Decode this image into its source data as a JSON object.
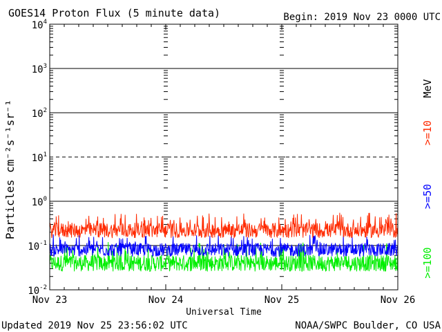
{
  "header": {
    "title": "GOES14 Proton Flux (5 minute data)",
    "begin": "Begin: 2019 Nov 23 0000 UTC"
  },
  "footer": {
    "updated": "Updated 2019 Nov 25 23:56:02 UTC",
    "credit": "NOAA/SWPC Boulder, CO USA"
  },
  "chart_data": {
    "type": "line",
    "title": "GOES14 Proton Flux (5 minute data)",
    "xlabel": "Universal Time",
    "ylabel": "Particles cm⁻²s⁻¹sr⁻¹",
    "yscale": "log",
    "ylim": [
      0.01,
      10000
    ],
    "xlim": [
      "2019-11-23 00:00",
      "2019-11-26 00:00"
    ],
    "x_tick_labels": [
      "Nov 23",
      "Nov 24",
      "Nov 25",
      "Nov 26"
    ],
    "y_tick_labels": [
      {
        "value": 0.01,
        "base": "10",
        "exp": "-2"
      },
      {
        "value": 0.1,
        "base": "10",
        "exp": "-1"
      },
      {
        "value": 1,
        "base": "10",
        "exp": "0"
      },
      {
        "value": 10,
        "base": "10",
        "exp": "1"
      },
      {
        "value": 100,
        "base": "10",
        "exp": "2"
      },
      {
        "value": 1000,
        "base": "10",
        "exp": "3"
      },
      {
        "value": 10000,
        "base": "10",
        "exp": "4"
      }
    ],
    "grid": "horizontal lines at each decade, dashed at 10; minor ticks at day boundaries",
    "unit_label": "MeV",
    "series": [
      {
        "name": ">=10",
        "color": "#ff2a00",
        "typical": 0.22,
        "low": 0.13,
        "high": 0.55
      },
      {
        "name": ">=50",
        "color": "#0000ff",
        "typical": 0.08,
        "low": 0.05,
        "high": 0.18
      },
      {
        "name": ">=100",
        "color": "#00ee00",
        "typical": 0.04,
        "low": 0.025,
        "high": 0.12
      }
    ]
  }
}
